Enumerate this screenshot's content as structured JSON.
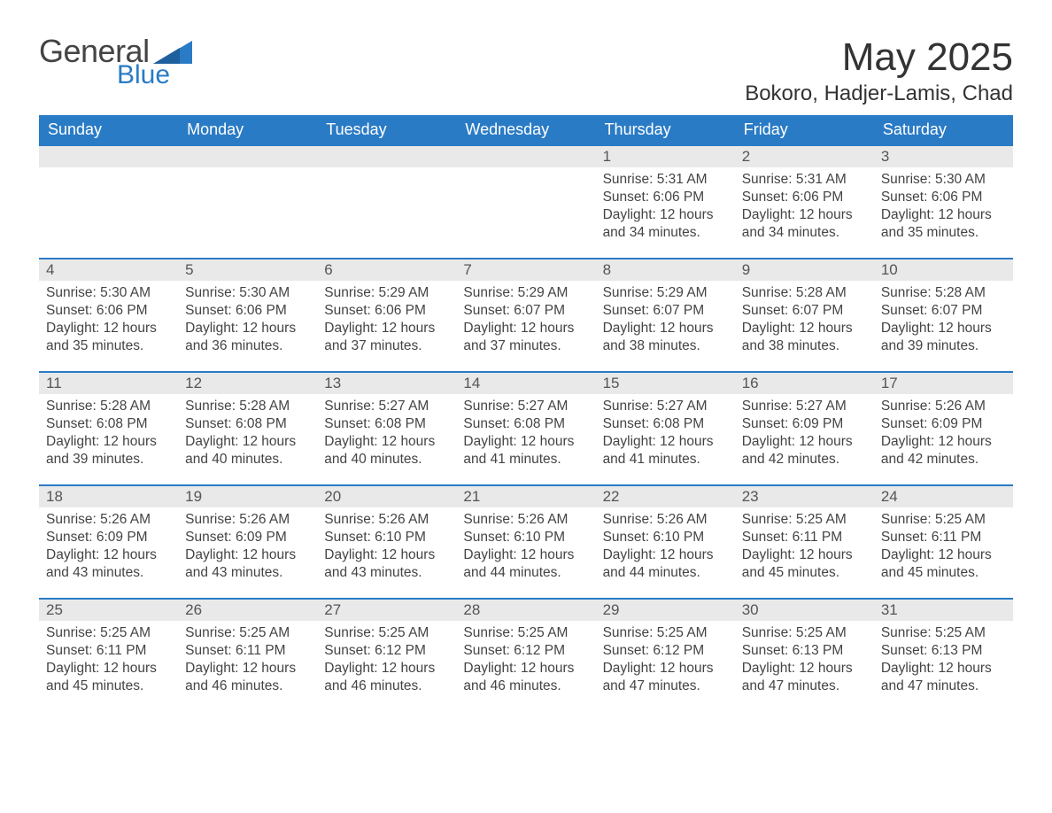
{
  "logo": {
    "word1": "General",
    "word2": "Blue"
  },
  "header": {
    "month_title": "May 2025",
    "location": "Bokoro, Hadjer-Lamis, Chad"
  },
  "colors": {
    "header_bg": "#2a7bc5",
    "header_text": "#ffffff",
    "daynum_bg": "#e9e9e9",
    "daynum_text": "#555555",
    "body_text": "#444444",
    "row_border": "#2a7bc5",
    "page_bg": "#ffffff"
  },
  "typography": {
    "month_title_fontsize": 44,
    "location_fontsize": 24,
    "weekday_fontsize": 18,
    "daynum_fontsize": 17,
    "body_fontsize": 15.5
  },
  "calendar": {
    "type": "table",
    "columns": [
      "Sunday",
      "Monday",
      "Tuesday",
      "Wednesday",
      "Thursday",
      "Friday",
      "Saturday"
    ],
    "weeks": [
      [
        null,
        null,
        null,
        null,
        {
          "day": "1",
          "sunrise": "Sunrise: 5:31 AM",
          "sunset": "Sunset: 6:06 PM",
          "daylight": "Daylight: 12 hours and 34 minutes."
        },
        {
          "day": "2",
          "sunrise": "Sunrise: 5:31 AM",
          "sunset": "Sunset: 6:06 PM",
          "daylight": "Daylight: 12 hours and 34 minutes."
        },
        {
          "day": "3",
          "sunrise": "Sunrise: 5:30 AM",
          "sunset": "Sunset: 6:06 PM",
          "daylight": "Daylight: 12 hours and 35 minutes."
        }
      ],
      [
        {
          "day": "4",
          "sunrise": "Sunrise: 5:30 AM",
          "sunset": "Sunset: 6:06 PM",
          "daylight": "Daylight: 12 hours and 35 minutes."
        },
        {
          "day": "5",
          "sunrise": "Sunrise: 5:30 AM",
          "sunset": "Sunset: 6:06 PM",
          "daylight": "Daylight: 12 hours and 36 minutes."
        },
        {
          "day": "6",
          "sunrise": "Sunrise: 5:29 AM",
          "sunset": "Sunset: 6:06 PM",
          "daylight": "Daylight: 12 hours and 37 minutes."
        },
        {
          "day": "7",
          "sunrise": "Sunrise: 5:29 AM",
          "sunset": "Sunset: 6:07 PM",
          "daylight": "Daylight: 12 hours and 37 minutes."
        },
        {
          "day": "8",
          "sunrise": "Sunrise: 5:29 AM",
          "sunset": "Sunset: 6:07 PM",
          "daylight": "Daylight: 12 hours and 38 minutes."
        },
        {
          "day": "9",
          "sunrise": "Sunrise: 5:28 AM",
          "sunset": "Sunset: 6:07 PM",
          "daylight": "Daylight: 12 hours and 38 minutes."
        },
        {
          "day": "10",
          "sunrise": "Sunrise: 5:28 AM",
          "sunset": "Sunset: 6:07 PM",
          "daylight": "Daylight: 12 hours and 39 minutes."
        }
      ],
      [
        {
          "day": "11",
          "sunrise": "Sunrise: 5:28 AM",
          "sunset": "Sunset: 6:08 PM",
          "daylight": "Daylight: 12 hours and 39 minutes."
        },
        {
          "day": "12",
          "sunrise": "Sunrise: 5:28 AM",
          "sunset": "Sunset: 6:08 PM",
          "daylight": "Daylight: 12 hours and 40 minutes."
        },
        {
          "day": "13",
          "sunrise": "Sunrise: 5:27 AM",
          "sunset": "Sunset: 6:08 PM",
          "daylight": "Daylight: 12 hours and 40 minutes."
        },
        {
          "day": "14",
          "sunrise": "Sunrise: 5:27 AM",
          "sunset": "Sunset: 6:08 PM",
          "daylight": "Daylight: 12 hours and 41 minutes."
        },
        {
          "day": "15",
          "sunrise": "Sunrise: 5:27 AM",
          "sunset": "Sunset: 6:08 PM",
          "daylight": "Daylight: 12 hours and 41 minutes."
        },
        {
          "day": "16",
          "sunrise": "Sunrise: 5:27 AM",
          "sunset": "Sunset: 6:09 PM",
          "daylight": "Daylight: 12 hours and 42 minutes."
        },
        {
          "day": "17",
          "sunrise": "Sunrise: 5:26 AM",
          "sunset": "Sunset: 6:09 PM",
          "daylight": "Daylight: 12 hours and 42 minutes."
        }
      ],
      [
        {
          "day": "18",
          "sunrise": "Sunrise: 5:26 AM",
          "sunset": "Sunset: 6:09 PM",
          "daylight": "Daylight: 12 hours and 43 minutes."
        },
        {
          "day": "19",
          "sunrise": "Sunrise: 5:26 AM",
          "sunset": "Sunset: 6:09 PM",
          "daylight": "Daylight: 12 hours and 43 minutes."
        },
        {
          "day": "20",
          "sunrise": "Sunrise: 5:26 AM",
          "sunset": "Sunset: 6:10 PM",
          "daylight": "Daylight: 12 hours and 43 minutes."
        },
        {
          "day": "21",
          "sunrise": "Sunrise: 5:26 AM",
          "sunset": "Sunset: 6:10 PM",
          "daylight": "Daylight: 12 hours and 44 minutes."
        },
        {
          "day": "22",
          "sunrise": "Sunrise: 5:26 AM",
          "sunset": "Sunset: 6:10 PM",
          "daylight": "Daylight: 12 hours and 44 minutes."
        },
        {
          "day": "23",
          "sunrise": "Sunrise: 5:25 AM",
          "sunset": "Sunset: 6:11 PM",
          "daylight": "Daylight: 12 hours and 45 minutes."
        },
        {
          "day": "24",
          "sunrise": "Sunrise: 5:25 AM",
          "sunset": "Sunset: 6:11 PM",
          "daylight": "Daylight: 12 hours and 45 minutes."
        }
      ],
      [
        {
          "day": "25",
          "sunrise": "Sunrise: 5:25 AM",
          "sunset": "Sunset: 6:11 PM",
          "daylight": "Daylight: 12 hours and 45 minutes."
        },
        {
          "day": "26",
          "sunrise": "Sunrise: 5:25 AM",
          "sunset": "Sunset: 6:11 PM",
          "daylight": "Daylight: 12 hours and 46 minutes."
        },
        {
          "day": "27",
          "sunrise": "Sunrise: 5:25 AM",
          "sunset": "Sunset: 6:12 PM",
          "daylight": "Daylight: 12 hours and 46 minutes."
        },
        {
          "day": "28",
          "sunrise": "Sunrise: 5:25 AM",
          "sunset": "Sunset: 6:12 PM",
          "daylight": "Daylight: 12 hours and 46 minutes."
        },
        {
          "day": "29",
          "sunrise": "Sunrise: 5:25 AM",
          "sunset": "Sunset: 6:12 PM",
          "daylight": "Daylight: 12 hours and 47 minutes."
        },
        {
          "day": "30",
          "sunrise": "Sunrise: 5:25 AM",
          "sunset": "Sunset: 6:13 PM",
          "daylight": "Daylight: 12 hours and 47 minutes."
        },
        {
          "day": "31",
          "sunrise": "Sunrise: 5:25 AM",
          "sunset": "Sunset: 6:13 PM",
          "daylight": "Daylight: 12 hours and 47 minutes."
        }
      ]
    ]
  }
}
